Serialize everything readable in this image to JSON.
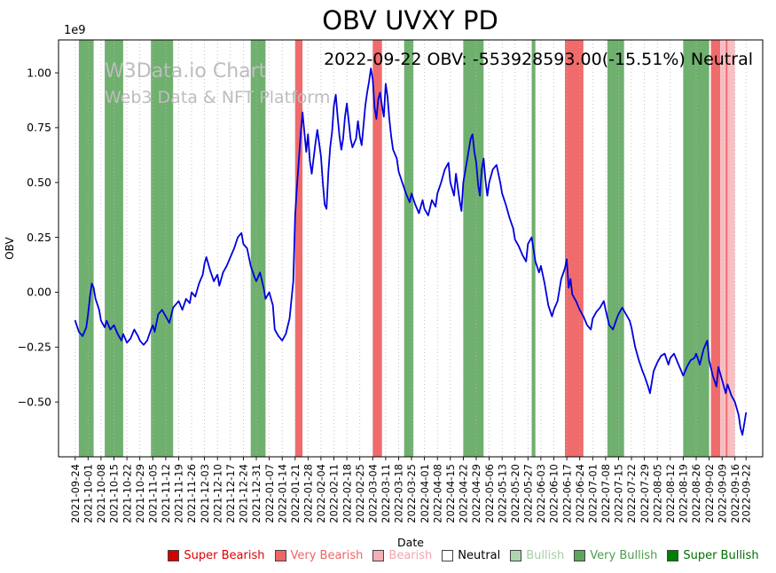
{
  "page": {
    "watermark_line1": "W3Data.io Chart",
    "watermark_line2": "Web3 Data & NFT Platform"
  },
  "chart_data": {
    "type": "line",
    "title": "OBV UVXY PD",
    "annotation": "2022-09-22 OBV: -553928593.00(-15.51%) Neutral",
    "xlabel": "Date",
    "ylabel": "OBV",
    "y_offset_label": "1e9",
    "y_unit": "1e9",
    "ylim": [
      -0.75,
      1.15
    ],
    "yticks": [
      -0.5,
      -0.25,
      0.0,
      0.25,
      0.5,
      0.75,
      1.0
    ],
    "x_range": [
      -9,
      372
    ],
    "grid": "vertical-dotted",
    "legend_position": "bottom",
    "xticks": [
      {
        "day": 0,
        "label": "2021-09-24"
      },
      {
        "day": 7,
        "label": "2021-10-01"
      },
      {
        "day": 14,
        "label": "2021-10-08"
      },
      {
        "day": 21,
        "label": "2021-10-15"
      },
      {
        "day": 28,
        "label": "2021-10-22"
      },
      {
        "day": 35,
        "label": "2021-10-29"
      },
      {
        "day": 42,
        "label": "2021-11-05"
      },
      {
        "day": 49,
        "label": "2021-11-12"
      },
      {
        "day": 56,
        "label": "2021-11-19"
      },
      {
        "day": 63,
        "label": "2021-11-26"
      },
      {
        "day": 70,
        "label": "2021-12-03"
      },
      {
        "day": 77,
        "label": "2021-12-10"
      },
      {
        "day": 84,
        "label": "2021-12-17"
      },
      {
        "day": 91,
        "label": "2021-12-24"
      },
      {
        "day": 98,
        "label": "2021-12-31"
      },
      {
        "day": 105,
        "label": "2022-01-07"
      },
      {
        "day": 112,
        "label": "2022-01-14"
      },
      {
        "day": 119,
        "label": "2022-01-21"
      },
      {
        "day": 126,
        "label": "2022-01-28"
      },
      {
        "day": 133,
        "label": "2022-02-04"
      },
      {
        "day": 140,
        "label": "2022-02-11"
      },
      {
        "day": 147,
        "label": "2022-02-18"
      },
      {
        "day": 154,
        "label": "2022-02-25"
      },
      {
        "day": 161,
        "label": "2022-03-04"
      },
      {
        "day": 168,
        "label": "2022-03-11"
      },
      {
        "day": 175,
        "label": "2022-03-18"
      },
      {
        "day": 182,
        "label": "2022-03-25"
      },
      {
        "day": 189,
        "label": "2022-04-01"
      },
      {
        "day": 196,
        "label": "2022-04-08"
      },
      {
        "day": 203,
        "label": "2022-04-15"
      },
      {
        "day": 210,
        "label": "2022-04-22"
      },
      {
        "day": 217,
        "label": "2022-04-29"
      },
      {
        "day": 224,
        "label": "2022-05-06"
      },
      {
        "day": 231,
        "label": "2022-05-13"
      },
      {
        "day": 238,
        "label": "2022-05-20"
      },
      {
        "day": 245,
        "label": "2022-05-27"
      },
      {
        "day": 252,
        "label": "2022-06-03"
      },
      {
        "day": 259,
        "label": "2022-06-10"
      },
      {
        "day": 266,
        "label": "2022-06-17"
      },
      {
        "day": 273,
        "label": "2022-06-24"
      },
      {
        "day": 280,
        "label": "2022-07-01"
      },
      {
        "day": 287,
        "label": "2022-07-08"
      },
      {
        "day": 294,
        "label": "2022-07-15"
      },
      {
        "day": 301,
        "label": "2022-07-22"
      },
      {
        "day": 308,
        "label": "2022-07-29"
      },
      {
        "day": 315,
        "label": "2022-08-05"
      },
      {
        "day": 322,
        "label": "2022-08-12"
      },
      {
        "day": 329,
        "label": "2022-08-19"
      },
      {
        "day": 336,
        "label": "2022-08-26"
      },
      {
        "day": 343,
        "label": "2022-09-02"
      },
      {
        "day": 350,
        "label": "2022-09-09"
      },
      {
        "day": 357,
        "label": "2022-09-16"
      },
      {
        "day": 363,
        "label": "2022-09-22"
      }
    ],
    "line": {
      "name": "OBV",
      "color": "#0000dd",
      "points": [
        [
          0,
          -0.13
        ],
        [
          2,
          -0.18
        ],
        [
          4,
          -0.2
        ],
        [
          6,
          -0.16
        ],
        [
          7,
          -0.1
        ],
        [
          8,
          -0.02
        ],
        [
          9,
          0.04
        ],
        [
          10,
          0.02
        ],
        [
          11,
          -0.03
        ],
        [
          13,
          -0.08
        ],
        [
          14,
          -0.13
        ],
        [
          16,
          -0.16
        ],
        [
          17,
          -0.13
        ],
        [
          19,
          -0.17
        ],
        [
          21,
          -0.15
        ],
        [
          23,
          -0.19
        ],
        [
          25,
          -0.22
        ],
        [
          26,
          -0.19
        ],
        [
          28,
          -0.23
        ],
        [
          30,
          -0.21
        ],
        [
          32,
          -0.17
        ],
        [
          34,
          -0.2
        ],
        [
          35,
          -0.22
        ],
        [
          37,
          -0.24
        ],
        [
          39,
          -0.22
        ],
        [
          41,
          -0.17
        ],
        [
          42,
          -0.15
        ],
        [
          43,
          -0.18
        ],
        [
          45,
          -0.1
        ],
        [
          47,
          -0.08
        ],
        [
          49,
          -0.11
        ],
        [
          51,
          -0.14
        ],
        [
          53,
          -0.07
        ],
        [
          56,
          -0.04
        ],
        [
          58,
          -0.08
        ],
        [
          60,
          -0.03
        ],
        [
          62,
          -0.05
        ],
        [
          63,
          0.0
        ],
        [
          65,
          -0.02
        ],
        [
          67,
          0.04
        ],
        [
          69,
          0.08
        ],
        [
          70,
          0.13
        ],
        [
          71,
          0.16
        ],
        [
          73,
          0.1
        ],
        [
          75,
          0.05
        ],
        [
          77,
          0.08
        ],
        [
          78,
          0.03
        ],
        [
          80,
          0.09
        ],
        [
          82,
          0.12
        ],
        [
          84,
          0.16
        ],
        [
          86,
          0.2
        ],
        [
          88,
          0.25
        ],
        [
          90,
          0.27
        ],
        [
          91,
          0.22
        ],
        [
          93,
          0.2
        ],
        [
          95,
          0.12
        ],
        [
          97,
          0.07
        ],
        [
          98,
          0.05
        ],
        [
          100,
          0.09
        ],
        [
          102,
          0.02
        ],
        [
          103,
          -0.03
        ],
        [
          105,
          0.0
        ],
        [
          107,
          -0.06
        ],
        [
          108,
          -0.17
        ],
        [
          110,
          -0.2
        ],
        [
          112,
          -0.22
        ],
        [
          114,
          -0.19
        ],
        [
          116,
          -0.12
        ],
        [
          118,
          0.05
        ],
        [
          119,
          0.35
        ],
        [
          120,
          0.48
        ],
        [
          121,
          0.6
        ],
        [
          122,
          0.72
        ],
        [
          123,
          0.82
        ],
        [
          124,
          0.73
        ],
        [
          125,
          0.64
        ],
        [
          126,
          0.72
        ],
        [
          127,
          0.6
        ],
        [
          128,
          0.54
        ],
        [
          130,
          0.68
        ],
        [
          131,
          0.74
        ],
        [
          133,
          0.62
        ],
        [
          134,
          0.5
        ],
        [
          135,
          0.4
        ],
        [
          136,
          0.38
        ],
        [
          137,
          0.55
        ],
        [
          138,
          0.66
        ],
        [
          139,
          0.73
        ],
        [
          140,
          0.85
        ],
        [
          141,
          0.9
        ],
        [
          142,
          0.8
        ],
        [
          143,
          0.71
        ],
        [
          144,
          0.65
        ],
        [
          145,
          0.7
        ],
        [
          146,
          0.8
        ],
        [
          147,
          0.86
        ],
        [
          148,
          0.78
        ],
        [
          149,
          0.7
        ],
        [
          150,
          0.66
        ],
        [
          152,
          0.7
        ],
        [
          153,
          0.78
        ],
        [
          154,
          0.71
        ],
        [
          155,
          0.67
        ],
        [
          156,
          0.76
        ],
        [
          157,
          0.85
        ],
        [
          158,
          0.91
        ],
        [
          159,
          0.96
        ],
        [
          160,
          1.02
        ],
        [
          161,
          0.97
        ],
        [
          162,
          0.84
        ],
        [
          163,
          0.79
        ],
        [
          164,
          0.88
        ],
        [
          165,
          0.91
        ],
        [
          166,
          0.85
        ],
        [
          167,
          0.8
        ],
        [
          168,
          0.95
        ],
        [
          169,
          0.89
        ],
        [
          170,
          0.79
        ],
        [
          171,
          0.71
        ],
        [
          172,
          0.65
        ],
        [
          174,
          0.61
        ],
        [
          175,
          0.55
        ],
        [
          177,
          0.5
        ],
        [
          179,
          0.45
        ],
        [
          181,
          0.41
        ],
        [
          182,
          0.45
        ],
        [
          184,
          0.4
        ],
        [
          186,
          0.36
        ],
        [
          188,
          0.42
        ],
        [
          189,
          0.38
        ],
        [
          191,
          0.35
        ],
        [
          193,
          0.42
        ],
        [
          195,
          0.39
        ],
        [
          196,
          0.45
        ],
        [
          198,
          0.5
        ],
        [
          200,
          0.56
        ],
        [
          202,
          0.59
        ],
        [
          203,
          0.5
        ],
        [
          205,
          0.44
        ],
        [
          206,
          0.54
        ],
        [
          208,
          0.42
        ],
        [
          209,
          0.37
        ],
        [
          210,
          0.5
        ],
        [
          212,
          0.6
        ],
        [
          214,
          0.7
        ],
        [
          215,
          0.72
        ],
        [
          216,
          0.64
        ],
        [
          217,
          0.59
        ],
        [
          218,
          0.49
        ],
        [
          219,
          0.44
        ],
        [
          220,
          0.56
        ],
        [
          221,
          0.61
        ],
        [
          222,
          0.51
        ],
        [
          223,
          0.44
        ],
        [
          224,
          0.5
        ],
        [
          226,
          0.56
        ],
        [
          228,
          0.58
        ],
        [
          230,
          0.5
        ],
        [
          231,
          0.45
        ],
        [
          233,
          0.4
        ],
        [
          235,
          0.34
        ],
        [
          237,
          0.29
        ],
        [
          238,
          0.24
        ],
        [
          240,
          0.21
        ],
        [
          242,
          0.17
        ],
        [
          244,
          0.14
        ],
        [
          245,
          0.22
        ],
        [
          247,
          0.25
        ],
        [
          249,
          0.14
        ],
        [
          251,
          0.09
        ],
        [
          252,
          0.12
        ],
        [
          254,
          0.04
        ],
        [
          256,
          -0.06
        ],
        [
          258,
          -0.11
        ],
        [
          259,
          -0.08
        ],
        [
          261,
          -0.04
        ],
        [
          263,
          0.06
        ],
        [
          265,
          0.11
        ],
        [
          266,
          0.15
        ],
        [
          267,
          0.02
        ],
        [
          268,
          0.06
        ],
        [
          269,
          -0.01
        ],
        [
          271,
          -0.04
        ],
        [
          273,
          -0.08
        ],
        [
          275,
          -0.11
        ],
        [
          277,
          -0.15
        ],
        [
          279,
          -0.17
        ],
        [
          280,
          -0.12
        ],
        [
          282,
          -0.09
        ],
        [
          284,
          -0.07
        ],
        [
          286,
          -0.04
        ],
        [
          287,
          -0.08
        ],
        [
          289,
          -0.15
        ],
        [
          291,
          -0.17
        ],
        [
          293,
          -0.12
        ],
        [
          294,
          -0.1
        ],
        [
          296,
          -0.07
        ],
        [
          298,
          -0.1
        ],
        [
          300,
          -0.13
        ],
        [
          301,
          -0.16
        ],
        [
          303,
          -0.25
        ],
        [
          305,
          -0.31
        ],
        [
          307,
          -0.36
        ],
        [
          308,
          -0.38
        ],
        [
          310,
          -0.43
        ],
        [
          311,
          -0.46
        ],
        [
          313,
          -0.36
        ],
        [
          315,
          -0.32
        ],
        [
          317,
          -0.29
        ],
        [
          319,
          -0.28
        ],
        [
          321,
          -0.33
        ],
        [
          322,
          -0.3
        ],
        [
          324,
          -0.28
        ],
        [
          326,
          -0.32
        ],
        [
          328,
          -0.36
        ],
        [
          329,
          -0.38
        ],
        [
          331,
          -0.34
        ],
        [
          333,
          -0.31
        ],
        [
          335,
          -0.3
        ],
        [
          336,
          -0.28
        ],
        [
          338,
          -0.33
        ],
        [
          340,
          -0.26
        ],
        [
          342,
          -0.22
        ],
        [
          343,
          -0.31
        ],
        [
          345,
          -0.38
        ],
        [
          347,
          -0.43
        ],
        [
          348,
          -0.34
        ],
        [
          350,
          -0.4
        ],
        [
          352,
          -0.46
        ],
        [
          353,
          -0.42
        ],
        [
          355,
          -0.47
        ],
        [
          357,
          -0.5
        ],
        [
          359,
          -0.56
        ],
        [
          360,
          -0.62
        ],
        [
          361,
          -0.65
        ],
        [
          362,
          -0.6
        ],
        [
          363,
          -0.55
        ]
      ]
    },
    "signal_colors": {
      "very_bullish": "#6fb06f",
      "very_bearish": "#f06b6b",
      "bearish": "#f9bfc3"
    },
    "bands": [
      {
        "from": 2,
        "to": 10,
        "signal": "very_bullish"
      },
      {
        "from": 16,
        "to": 26,
        "signal": "very_bullish"
      },
      {
        "from": 41,
        "to": 53,
        "signal": "very_bullish"
      },
      {
        "from": 95,
        "to": 103,
        "signal": "very_bullish"
      },
      {
        "from": 119,
        "to": 123,
        "signal": "very_bearish"
      },
      {
        "from": 161,
        "to": 166,
        "signal": "very_bearish"
      },
      {
        "from": 178,
        "to": 183,
        "signal": "very_bullish"
      },
      {
        "from": 210,
        "to": 221,
        "signal": "very_bullish"
      },
      {
        "from": 247,
        "to": 249,
        "signal": "very_bullish"
      },
      {
        "from": 265,
        "to": 275,
        "signal": "very_bearish"
      },
      {
        "from": 288,
        "to": 297,
        "signal": "very_bullish"
      },
      {
        "from": 329,
        "to": 343,
        "signal": "very_bullish"
      },
      {
        "from": 344,
        "to": 349,
        "signal": "very_bearish"
      },
      {
        "from": 349,
        "to": 352,
        "signal": "bearish"
      },
      {
        "from": 352,
        "to": 353,
        "signal": "very_bearish"
      },
      {
        "from": 353,
        "to": 357,
        "signal": "bearish"
      }
    ],
    "legend": [
      {
        "label": "Super Bearish",
        "color": "#d40000",
        "text_color": "#e00000"
      },
      {
        "label": "Very Bearish",
        "color": "#ee6565",
        "text_color": "#ee6565"
      },
      {
        "label": "Bearish",
        "color": "#f5aeb3",
        "text_color": "#f2a5ac"
      },
      {
        "label": "Neutral",
        "color": "#ffffff",
        "text_color": "#000000"
      },
      {
        "label": "Bullish",
        "color": "#aed6ae",
        "text_color": "#a6cfa6"
      },
      {
        "label": "Very Bullish",
        "color": "#5fa45f",
        "text_color": "#4f9b4f"
      },
      {
        "label": "Super Bullish",
        "color": "#008000",
        "text_color": "#007000"
      }
    ]
  }
}
